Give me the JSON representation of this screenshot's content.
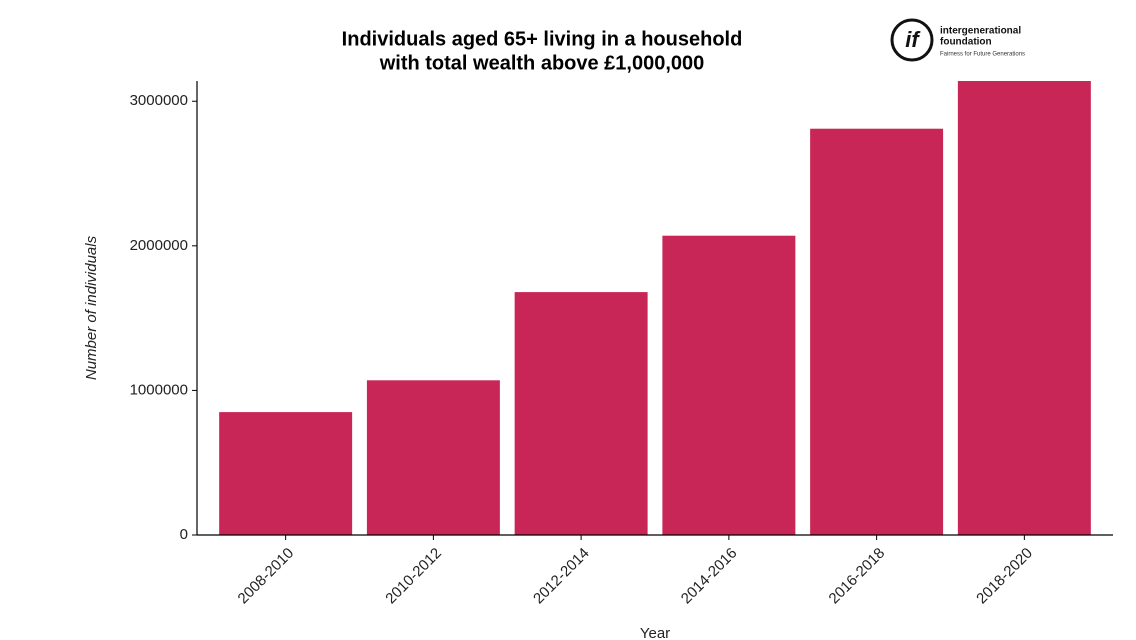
{
  "chart_data": {
    "type": "bar",
    "title": [
      "Individuals aged 65+ living in a household",
      "with total wealth above £1,000,000"
    ],
    "x_label": "Year",
    "y_label": "Number of individuals",
    "categories": [
      "2008-2010",
      "2010-2012",
      "2012-2014",
      "2014-2016",
      "2016-2018",
      "2018-2020"
    ],
    "values": [
      850000,
      1070000,
      1680000,
      2070000,
      2810000,
      3140000
    ],
    "color": "#c82656",
    "ylim": [
      0,
      3140000
    ],
    "yticks": [
      0,
      1000000,
      2000000,
      3000000
    ],
    "grid": false
  },
  "logo": {
    "mark": "if",
    "name": [
      "intergenerational",
      "foundation"
    ],
    "tagline": "Fairness for Future Generations"
  }
}
